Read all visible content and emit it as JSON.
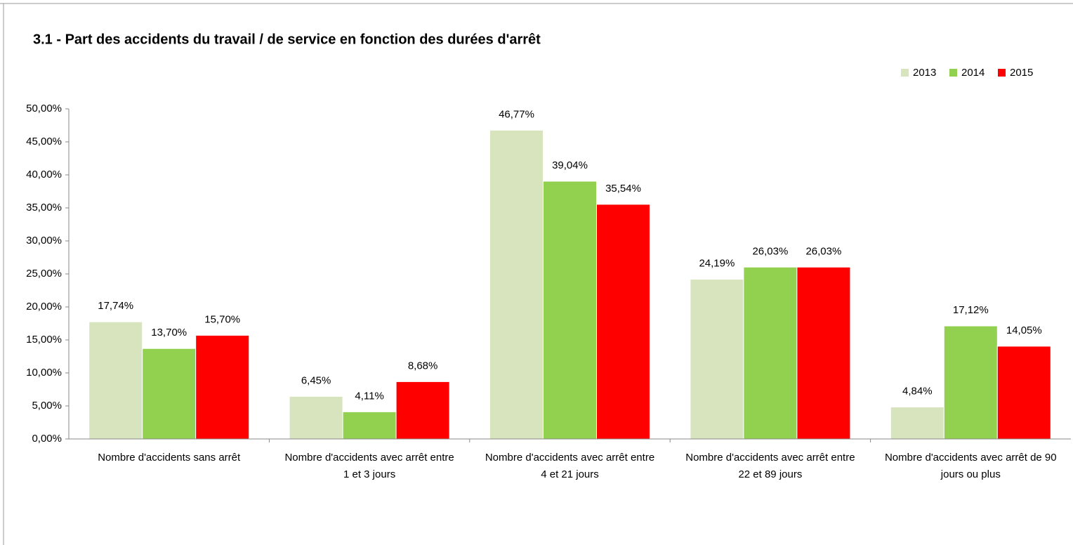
{
  "chart_data": {
    "type": "bar",
    "title": "3.1 - Part des accidents du travail / de service en fonction des durées d'arrêt",
    "categories": [
      "Nombre d'accidents sans arrêt",
      "Nombre d'accidents avec arrêt entre 1 et 3 jours",
      "Nombre d'accidents avec arrêt entre 4 et 21 jours",
      "Nombre d'accidents avec arrêt entre 22 et 89 jours",
      "Nombre d'accidents avec arrêt de 90 jours ou plus"
    ],
    "series": [
      {
        "name": "2013",
        "color": "#d7e4bd",
        "values": [
          17.74,
          6.45,
          46.77,
          24.19,
          4.84
        ],
        "value_labels": [
          "17,74%",
          "6,45%",
          "46,77%",
          "24,19%",
          "4,84%"
        ]
      },
      {
        "name": "2014",
        "color": "#92d050",
        "values": [
          13.7,
          4.11,
          39.04,
          26.03,
          17.12
        ],
        "value_labels": [
          "13,70%",
          "4,11%",
          "39,04%",
          "26,03%",
          "17,12%"
        ]
      },
      {
        "name": "2015",
        "color": "#ff0000",
        "values": [
          15.7,
          8.68,
          35.54,
          26.03,
          14.05
        ],
        "value_labels": [
          "15,70%",
          "8,68%",
          "35,54%",
          "26,03%",
          "14,05%"
        ]
      }
    ],
    "ylim": [
      0,
      50
    ],
    "yticks": [
      {
        "value": 0,
        "label": "0,00%"
      },
      {
        "value": 5,
        "label": "5,00%"
      },
      {
        "value": 10,
        "label": "10,00%"
      },
      {
        "value": 15,
        "label": "15,00%"
      },
      {
        "value": 20,
        "label": "20,00%"
      },
      {
        "value": 25,
        "label": "25,00%"
      },
      {
        "value": 30,
        "label": "30,00%"
      },
      {
        "value": 35,
        "label": "35,00%"
      },
      {
        "value": 40,
        "label": "40,00%"
      },
      {
        "value": 45,
        "label": "45,00%"
      },
      {
        "value": 50,
        "label": "50,00%"
      }
    ],
    "grid": false,
    "legend": "top-right"
  }
}
